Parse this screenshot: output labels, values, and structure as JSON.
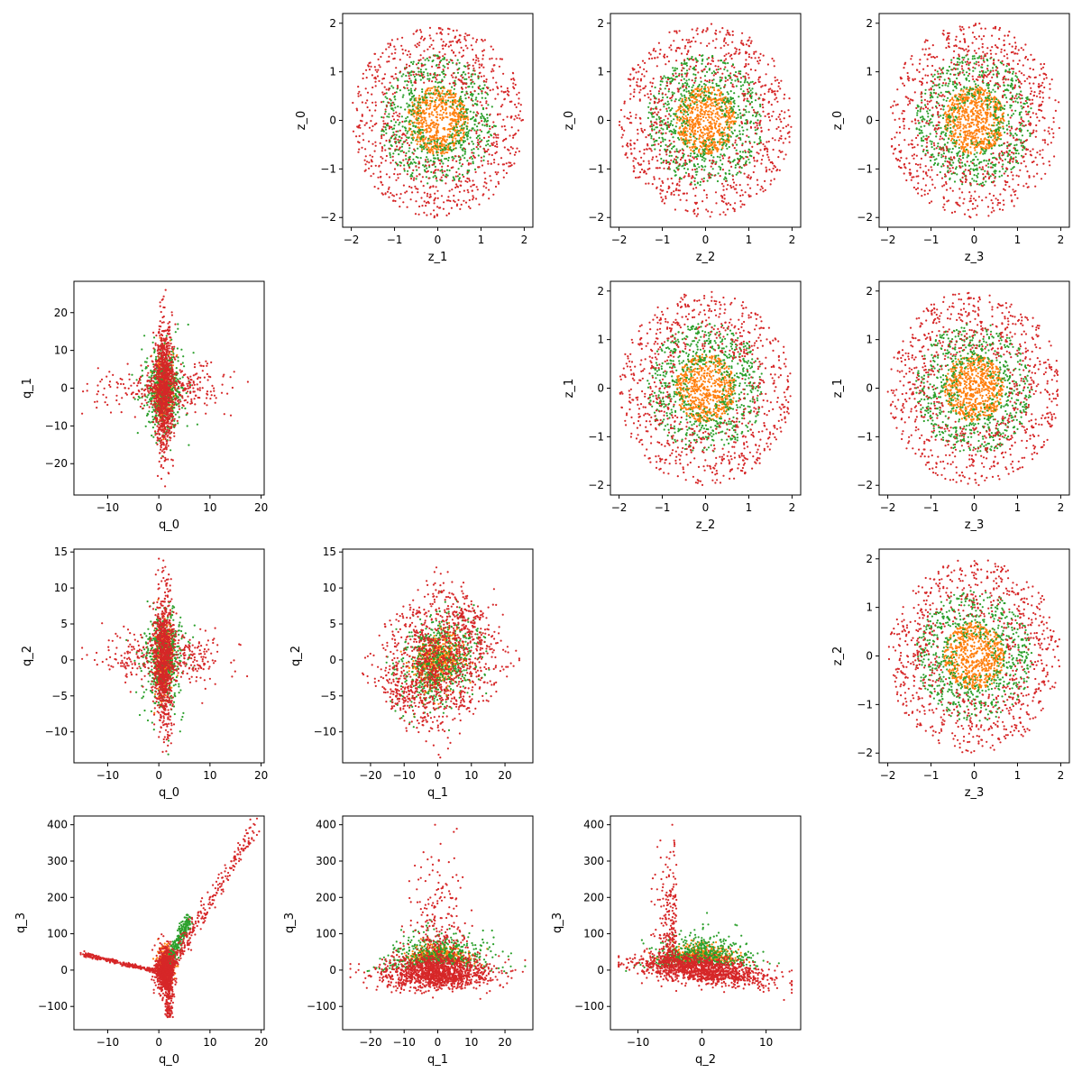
{
  "figure": {
    "colors": {
      "band_inner": "#ff7f0e",
      "band_middle": "#2ca02c",
      "band_outer": "#d62728",
      "axis": "#000000",
      "background": "#ffffff"
    }
  },
  "chart_data": [
    {
      "panel": "z_0 vs z_1",
      "type": "scatter",
      "xlabel": "z_1",
      "ylabel": "z_0",
      "xlim": [
        -2.2,
        2.2
      ],
      "ylim": [
        -2.2,
        2.2
      ],
      "xticks": [
        -2,
        -1,
        0,
        1,
        2
      ],
      "yticks": [
        -2,
        -1,
        0,
        1,
        2
      ],
      "grid": false,
      "series": [
        {
          "distribution": "uniform disk",
          "radius": 0.7,
          "approx_points": 650
        },
        {
          "distribution": "uniform annulus",
          "radius_range": [
            0.4,
            1.35
          ],
          "approx_points": 700
        },
        {
          "distribution": "uniform annulus",
          "radius_range": [
            0.8,
            2.0
          ],
          "approx_points": 850
        }
      ]
    },
    {
      "panel": "z_0 vs z_2",
      "type": "scatter",
      "xlabel": "z_2",
      "ylabel": "z_0",
      "xlim": [
        -2.2,
        2.2
      ],
      "ylim": [
        -2.2,
        2.2
      ],
      "xticks": [
        -2,
        -1,
        0,
        1,
        2
      ],
      "yticks": [
        -2,
        -1,
        0,
        1,
        2
      ],
      "grid": false,
      "series": [
        {
          "distribution": "uniform disk",
          "radius": 0.7,
          "approx_points": 650
        },
        {
          "distribution": "uniform annulus",
          "radius_range": [
            0.4,
            1.35
          ],
          "approx_points": 700
        },
        {
          "distribution": "uniform annulus",
          "radius_range": [
            0.8,
            2.0
          ],
          "approx_points": 850
        }
      ]
    },
    {
      "panel": "z_0 vs z_3",
      "type": "scatter",
      "xlabel": "z_3",
      "ylabel": "z_0",
      "xlim": [
        -2.2,
        2.2
      ],
      "ylim": [
        -2.2,
        2.2
      ],
      "xticks": [
        -2,
        -1,
        0,
        1,
        2
      ],
      "yticks": [
        -2,
        -1,
        0,
        1,
        2
      ],
      "grid": false,
      "series": [
        {
          "distribution": "uniform disk",
          "radius": 0.7,
          "approx_points": 650
        },
        {
          "distribution": "uniform annulus",
          "radius_range": [
            0.4,
            1.35
          ],
          "approx_points": 700
        },
        {
          "distribution": "uniform annulus",
          "radius_range": [
            0.8,
            2.0
          ],
          "approx_points": 850
        }
      ]
    },
    {
      "panel": "z_1 vs z_2",
      "type": "scatter",
      "xlabel": "z_2",
      "ylabel": "z_1",
      "xlim": [
        -2.2,
        2.2
      ],
      "ylim": [
        -2.2,
        2.2
      ],
      "xticks": [
        -2,
        -1,
        0,
        1,
        2
      ],
      "yticks": [
        -2,
        -1,
        0,
        1,
        2
      ],
      "grid": false,
      "series": [
        {
          "distribution": "uniform disk",
          "radius": 0.7,
          "approx_points": 650
        },
        {
          "distribution": "uniform annulus",
          "radius_range": [
            0.4,
            1.35
          ],
          "approx_points": 700
        },
        {
          "distribution": "uniform annulus",
          "radius_range": [
            0.8,
            2.0
          ],
          "approx_points": 850
        }
      ]
    },
    {
      "panel": "z_1 vs z_3",
      "type": "scatter",
      "xlabel": "z_3",
      "ylabel": "z_1",
      "xlim": [
        -2.2,
        2.2
      ],
      "ylim": [
        -2.2,
        2.2
      ],
      "xticks": [
        -2,
        -1,
        0,
        1,
        2
      ],
      "yticks": [
        -2,
        -1,
        0,
        1,
        2
      ],
      "grid": false,
      "series": [
        {
          "distribution": "uniform disk",
          "radius": 0.7,
          "approx_points": 650
        },
        {
          "distribution": "uniform annulus",
          "radius_range": [
            0.4,
            1.35
          ],
          "approx_points": 700
        },
        {
          "distribution": "uniform annulus",
          "radius_range": [
            0.8,
            2.0
          ],
          "approx_points": 850
        }
      ]
    },
    {
      "panel": "z_2 vs z_3",
      "type": "scatter",
      "xlabel": "z_3",
      "ylabel": "z_2",
      "xlim": [
        -2.2,
        2.2
      ],
      "ylim": [
        -2.2,
        2.2
      ],
      "xticks": [
        -2,
        -1,
        0,
        1,
        2
      ],
      "yticks": [
        -2,
        -1,
        0,
        1,
        2
      ],
      "grid": false,
      "series": [
        {
          "distribution": "uniform disk",
          "radius": 0.7,
          "approx_points": 650
        },
        {
          "distribution": "uniform annulus",
          "radius_range": [
            0.4,
            1.35
          ],
          "approx_points": 700
        },
        {
          "distribution": "uniform annulus",
          "radius_range": [
            0.8,
            2.0
          ],
          "approx_points": 850
        }
      ]
    },
    {
      "panel": "q_1 vs q_0",
      "type": "scatter",
      "xlabel": "q_0",
      "ylabel": "q_1",
      "xlim": [
        -16.6,
        20.6
      ],
      "ylim": [
        -28.3,
        28.3
      ],
      "xticks": [
        -10,
        0,
        10,
        20
      ],
      "yticks": [
        -20,
        -10,
        0,
        10,
        20
      ],
      "grid": false,
      "series": [
        {
          "distribution": "central narrow blob",
          "x_range": [
            -1,
            3
          ],
          "y_range": [
            -10,
            10
          ],
          "approx_points": 400
        },
        {
          "distribution": "spread blob",
          "x_range": [
            -6,
            6
          ],
          "y_range": [
            -15,
            15
          ],
          "approx_points": 500
        },
        {
          "distribution": "spike and wings",
          "x_range": [
            -15,
            19
          ],
          "y_range": [
            -26,
            26
          ],
          "approx_points": 1200
        }
      ]
    },
    {
      "panel": "q_2 vs q_0",
      "type": "scatter",
      "xlabel": "q_0",
      "ylabel": "q_2",
      "xlim": [
        -16.6,
        20.6
      ],
      "ylim": [
        -14.3,
        15.4
      ],
      "xticks": [
        -10,
        0,
        10,
        20
      ],
      "yticks": [
        -10,
        -5,
        0,
        5,
        10,
        15
      ],
      "grid": false,
      "series": [
        {
          "distribution": "central narrow blob",
          "x_range": [
            -1,
            3
          ],
          "y_range": [
            -5,
            5
          ],
          "approx_points": 400
        },
        {
          "distribution": "spread blob",
          "x_range": [
            -6,
            6
          ],
          "y_range": [
            -9,
            9
          ],
          "approx_points": 500
        },
        {
          "distribution": "spike and wings",
          "x_range": [
            -15,
            19
          ],
          "y_range": [
            -13,
            14
          ],
          "approx_points": 1200
        }
      ]
    },
    {
      "panel": "q_2 vs q_1",
      "type": "scatter",
      "xlabel": "q_1",
      "ylabel": "q_2",
      "xlim": [
        -28.3,
        28.3
      ],
      "ylim": [
        -14.3,
        15.4
      ],
      "xticks": [
        -20,
        -10,
        0,
        10,
        20
      ],
      "yticks": [
        -10,
        -5,
        0,
        5,
        10,
        15
      ],
      "grid": false,
      "series": [
        {
          "distribution": "central blob",
          "x_range": [
            -8,
            8
          ],
          "y_range": [
            -5,
            5
          ],
          "approx_points": 500
        },
        {
          "distribution": "spread blob",
          "x_range": [
            -15,
            15
          ],
          "y_range": [
            -9,
            9
          ],
          "approx_points": 600
        },
        {
          "distribution": "diamond",
          "x_range": [
            -26,
            26
          ],
          "y_range": [
            -13,
            14
          ],
          "approx_points": 1200
        }
      ]
    },
    {
      "panel": "q_3 vs q_0",
      "type": "scatter",
      "xlabel": "q_0",
      "ylabel": "q_3",
      "xlim": [
        -16.6,
        20.6
      ],
      "ylim": [
        -164,
        424
      ],
      "xticks": [
        -10,
        0,
        10,
        20
      ],
      "yticks": [
        -100,
        0,
        100,
        200,
        300,
        400
      ],
      "grid": false,
      "series": [
        {
          "distribution": "central cluster",
          "x_range": [
            0,
            3
          ],
          "y_range": [
            -20,
            80
          ],
          "approx_points": 300
        },
        {
          "distribution": "diagonal arm",
          "x_range": [
            0,
            6
          ],
          "y_range": [
            0,
            140
          ],
          "approx_points": 300
        },
        {
          "distribution": "three arms",
          "arms": [
            "left to (-15, 50)",
            "down to (2, -130)",
            "up-right to (19, 400)"
          ],
          "approx_points": 1500
        }
      ]
    },
    {
      "panel": "q_3 vs q_1",
      "type": "scatter",
      "xlabel": "q_1",
      "ylabel": "q_3",
      "xlim": [
        -28.3,
        28.3
      ],
      "ylim": [
        -164,
        424
      ],
      "xticks": [
        -20,
        -10,
        0,
        10,
        20
      ],
      "yticks": [
        -100,
        0,
        100,
        200,
        300,
        400
      ],
      "grid": false,
      "series": [
        {
          "distribution": "central hump",
          "x_range": [
            -6,
            6
          ],
          "y_range": [
            0,
            90
          ],
          "approx_points": 400
        },
        {
          "distribution": "spread hump",
          "x_range": [
            -12,
            12
          ],
          "y_range": [
            -30,
            150
          ],
          "approx_points": 500
        },
        {
          "distribution": "band and spike",
          "x_range": [
            -26,
            26
          ],
          "y_range": [
            -140,
            400
          ],
          "approx_points": 1500
        }
      ]
    },
    {
      "panel": "q_3 vs q_2",
      "type": "scatter",
      "xlabel": "q_2",
      "ylabel": "q_3",
      "xlim": [
        -14.3,
        15.4
      ],
      "ylim": [
        -164,
        424
      ],
      "xticks": [
        -10,
        0,
        10
      ],
      "yticks": [
        -100,
        0,
        100,
        200,
        300,
        400
      ],
      "grid": false,
      "series": [
        {
          "distribution": "central hump",
          "x_range": [
            -4,
            4
          ],
          "y_range": [
            0,
            90
          ],
          "approx_points": 400
        },
        {
          "distribution": "spread hump",
          "x_range": [
            -8,
            8
          ],
          "y_range": [
            -30,
            150
          ],
          "approx_points": 500
        },
        {
          "distribution": "tilted band and spike",
          "x_range": [
            -13,
            14
          ],
          "y_range": [
            -140,
            400
          ],
          "approx_points": 1500
        }
      ]
    }
  ]
}
